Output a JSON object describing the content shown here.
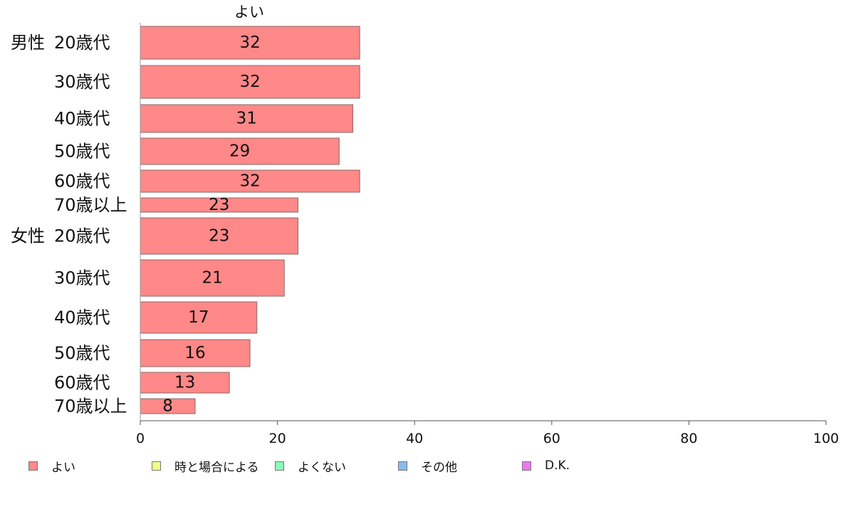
{
  "chart_data": {
    "type": "bar",
    "orientation": "horizontal",
    "column_title": "よい",
    "groups": [
      {
        "label": "男性",
        "rows": [
          {
            "label": "20歳代",
            "value": 32
          },
          {
            "label": "30歳代",
            "value": 32
          },
          {
            "label": "40歳代",
            "value": 31
          },
          {
            "label": "50歳代",
            "value": 29
          },
          {
            "label": "60歳代",
            "value": 32
          },
          {
            "label": "70歳以上",
            "value": 23
          }
        ]
      },
      {
        "label": "女性",
        "rows": [
          {
            "label": "20歳代",
            "value": 23
          },
          {
            "label": "30歳代",
            "value": 21
          },
          {
            "label": "40歳代",
            "value": 17
          },
          {
            "label": "50歳代",
            "value": 16
          },
          {
            "label": "60歳代",
            "value": 13
          },
          {
            "label": "70歳以上",
            "value": 8
          }
        ]
      }
    ],
    "xlim": [
      0,
      100
    ],
    "xticks": [
      "0",
      "20",
      "40",
      "60",
      "80",
      "100"
    ],
    "legend": [
      {
        "name": "よい",
        "color": "#ff8888"
      },
      {
        "name": "時と場合による",
        "color": "#eeff88"
      },
      {
        "name": "よくない",
        "color": "#88ffbb"
      },
      {
        "name": "その他",
        "color": "#88bbee"
      },
      {
        "name": "D.K.",
        "color": "#ee77ee"
      }
    ],
    "legend_position": "bottom",
    "grid": false
  }
}
